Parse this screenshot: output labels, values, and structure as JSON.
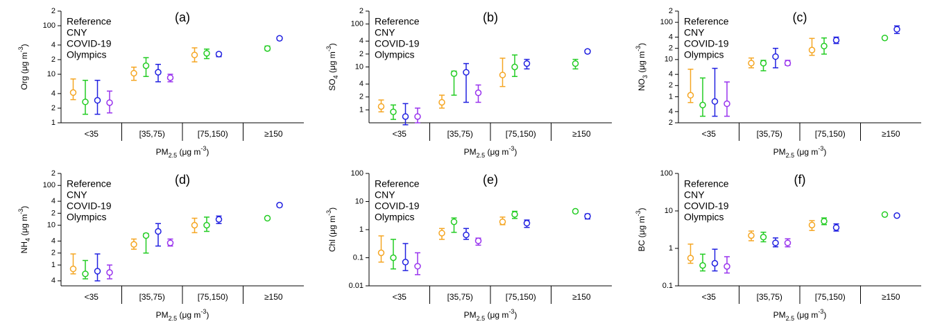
{
  "chart_data": [
    {
      "type": "errorbar",
      "title": "(a)",
      "log_y": true,
      "legend": "upper left",
      "ylabel": [
        {
          "text": "Org (μg m"
        },
        {
          "text": "-3",
          "sup": true
        },
        {
          "text": ")"
        }
      ],
      "xlabel": [
        {
          "text": "PM"
        },
        {
          "text": "2.5",
          "sub": true
        },
        {
          "text": " (μg m"
        },
        {
          "text": "-3",
          "sup": true
        },
        {
          "text": ")"
        }
      ],
      "categories": [
        "<35",
        "[35,75)",
        "[75,150)",
        "≥150"
      ],
      "ylim": [
        1,
        200
      ],
      "yticks": [
        1,
        2,
        4,
        10,
        {
          "value": 20,
          "label": "2"
        },
        {
          "value": 40,
          "label": "4"
        },
        100,
        {
          "value": 200,
          "label": "2"
        }
      ],
      "series": [
        {
          "name": "Reference",
          "color": "#f5a623",
          "values": [
            4.2,
            10.5,
            25,
            null
          ],
          "lower": [
            3,
            7.5,
            18,
            null
          ],
          "upper": [
            8,
            14,
            35,
            null
          ]
        },
        {
          "name": "CNY",
          "color": "#22cc22",
          "values": [
            2.7,
            15,
            27,
            34
          ],
          "lower": [
            1.5,
            9,
            21,
            31
          ],
          "upper": [
            7.5,
            22,
            33,
            38
          ]
        },
        {
          "name": "COVID-19",
          "color": "#2020e0",
          "values": [
            2.9,
            11,
            26,
            55
          ],
          "lower": [
            1.5,
            7,
            23,
            51
          ],
          "upper": [
            7.5,
            16,
            28,
            59
          ]
        },
        {
          "name": "Olympics",
          "color": "#9933ee",
          "values": [
            2.6,
            8.5,
            null,
            null
          ],
          "lower": [
            1.6,
            7,
            null,
            null
          ],
          "upper": [
            4.5,
            10,
            null,
            null
          ]
        }
      ]
    },
    {
      "type": "errorbar",
      "title": "(b)",
      "log_y": true,
      "legend": "upper left",
      "ylabel": [
        {
          "text": "SO"
        },
        {
          "text": "4",
          "sub": true
        },
        {
          "text": " (μg m"
        },
        {
          "text": "-3",
          "sup": true
        },
        {
          "text": ")"
        }
      ],
      "xlabel": [
        {
          "text": "PM"
        },
        {
          "text": "2.5",
          "sub": true
        },
        {
          "text": " (μg m"
        },
        {
          "text": "-3",
          "sup": true
        },
        {
          "text": ")"
        }
      ],
      "categories": [
        "<35",
        "[35,75)",
        "[75,150)",
        "≥150"
      ],
      "ylim": [
        0.5,
        200
      ],
      "yticks": [
        1,
        2,
        4,
        10,
        {
          "value": 20,
          "label": "2"
        },
        {
          "value": 40,
          "label": "4"
        },
        100,
        {
          "value": 200,
          "label": "2"
        }
      ],
      "series": [
        {
          "name": "Reference",
          "color": "#f5a623",
          "values": [
            1.2,
            1.5,
            6.5,
            null
          ],
          "lower": [
            0.9,
            1.1,
            3.5,
            null
          ],
          "upper": [
            1.7,
            2.2,
            16,
            null
          ]
        },
        {
          "name": "CNY",
          "color": "#22cc22",
          "values": [
            0.9,
            7,
            10,
            12
          ],
          "lower": [
            0.6,
            2.2,
            6,
            9
          ],
          "upper": [
            1.3,
            8,
            19,
            15
          ]
        },
        {
          "name": "COVID-19",
          "color": "#2020e0",
          "values": [
            0.7,
            7.5,
            12,
            23
          ],
          "lower": [
            0.45,
            1.5,
            9,
            21
          ],
          "upper": [
            1.4,
            12,
            15,
            25
          ]
        },
        {
          "name": "Olympics",
          "color": "#9933ee",
          "values": [
            0.7,
            2.5,
            null,
            null
          ],
          "lower": [
            0.5,
            1.5,
            null,
            null
          ],
          "upper": [
            1.1,
            3.8,
            null,
            null
          ]
        }
      ]
    },
    {
      "type": "errorbar",
      "title": "(c)",
      "log_y": true,
      "legend": "upper left",
      "ylabel": [
        {
          "text": "NO"
        },
        {
          "text": "3",
          "sub": true
        },
        {
          "text": " (μg m"
        },
        {
          "text": "-3",
          "sup": true
        },
        {
          "text": ")"
        }
      ],
      "xlabel": [
        {
          "text": "PM"
        },
        {
          "text": "2.5",
          "sub": true
        },
        {
          "text": " (μg m"
        },
        {
          "text": "-3",
          "sup": true
        },
        {
          "text": ")"
        }
      ],
      "categories": [
        "<35",
        "[35,75)",
        "[75,150)",
        "≥150"
      ],
      "ylim": [
        0.2,
        200
      ],
      "yticks": [
        {
          "value": 0.2,
          "label": "2"
        },
        {
          "value": 0.4,
          "label": "4"
        },
        1,
        2,
        4,
        10,
        {
          "value": 20,
          "label": "2"
        },
        {
          "value": 40,
          "label": "4"
        },
        100,
        {
          "value": 200,
          "label": "2"
        }
      ],
      "series": [
        {
          "name": "Reference",
          "color": "#f5a623",
          "values": [
            1.1,
            8,
            18,
            null
          ],
          "lower": [
            0.7,
            6,
            13,
            null
          ],
          "upper": [
            5.5,
            11,
            37,
            null
          ]
        },
        {
          "name": "CNY",
          "color": "#22cc22",
          "values": [
            0.6,
            8,
            23,
            38
          ],
          "lower": [
            0.3,
            5,
            14,
            36
          ],
          "upper": [
            3.2,
            9.5,
            38,
            41
          ]
        },
        {
          "name": "COVID-19",
          "color": "#2020e0",
          "values": [
            0.75,
            12,
            33,
            65
          ],
          "lower": [
            0.3,
            6,
            27,
            50
          ],
          "upper": [
            5.8,
            20,
            40,
            80
          ]
        },
        {
          "name": "Olympics",
          "color": "#9933ee",
          "values": [
            0.65,
            8,
            null,
            null
          ],
          "lower": [
            0.3,
            7,
            null,
            null
          ],
          "upper": [
            2.5,
            9.5,
            null,
            null
          ]
        }
      ]
    },
    {
      "type": "errorbar",
      "title": "(d)",
      "log_y": true,
      "legend": "upper left",
      "ylabel": [
        {
          "text": "NH"
        },
        {
          "text": "4",
          "sub": true
        },
        {
          "text": " (μg m"
        },
        {
          "text": "-3",
          "sup": true
        },
        {
          "text": ")"
        }
      ],
      "xlabel": [
        {
          "text": "PM"
        },
        {
          "text": "2.5",
          "sub": true
        },
        {
          "text": " (μg m"
        },
        {
          "text": "-3",
          "sup": true
        },
        {
          "text": ")"
        }
      ],
      "categories": [
        "<35",
        "[35,75)",
        "[75,150)",
        "≥150"
      ],
      "ylim": [
        0.3,
        200
      ],
      "yticks": [
        {
          "value": 0.4,
          "label": "4"
        },
        1,
        2,
        4,
        10,
        {
          "value": 20,
          "label": "2"
        },
        {
          "value": 40,
          "label": "4"
        },
        100,
        {
          "value": 200,
          "label": "2"
        }
      ],
      "series": [
        {
          "name": "Reference",
          "color": "#f5a623",
          "values": [
            0.8,
            3.3,
            10,
            null
          ],
          "lower": [
            0.6,
            2.5,
            6.5,
            null
          ],
          "upper": [
            1.9,
            4.5,
            15,
            null
          ]
        },
        {
          "name": "CNY",
          "color": "#22cc22",
          "values": [
            0.6,
            5.5,
            10,
            15
          ],
          "lower": [
            0.45,
            2,
            7,
            14
          ],
          "upper": [
            1.3,
            6.2,
            16,
            16
          ]
        },
        {
          "name": "COVID-19",
          "color": "#2020e0",
          "values": [
            0.7,
            7,
            14,
            32
          ],
          "lower": [
            0.4,
            3,
            11,
            29
          ],
          "upper": [
            1.9,
            11,
            17,
            35
          ]
        },
        {
          "name": "Olympics",
          "color": "#9933ee",
          "values": [
            0.65,
            3.6,
            null,
            null
          ],
          "lower": [
            0.45,
            3,
            null,
            null
          ],
          "upper": [
            1.0,
            4.5,
            null,
            null
          ]
        }
      ]
    },
    {
      "type": "errorbar",
      "title": "(e)",
      "log_y": true,
      "legend": "upper left",
      "ylabel": [
        {
          "text": "Chl (μg m"
        },
        {
          "text": "-3",
          "sup": true
        },
        {
          "text": ")"
        }
      ],
      "xlabel": [
        {
          "text": "PM"
        },
        {
          "text": "2.5",
          "sub": true
        },
        {
          "text": " (μg m"
        },
        {
          "text": "-3",
          "sup": true
        },
        {
          "text": ")"
        }
      ],
      "categories": [
        "<35",
        "[35,75)",
        "[75,150)",
        "≥150"
      ],
      "ylim": [
        0.01,
        100
      ],
      "yticks": [
        0.01,
        0.1,
        1,
        10,
        100
      ],
      "series": [
        {
          "name": "Reference",
          "color": "#f5a623",
          "values": [
            0.15,
            0.75,
            1.9,
            null
          ],
          "lower": [
            0.07,
            0.45,
            1.5,
            null
          ],
          "upper": [
            0.6,
            1.1,
            2.8,
            null
          ]
        },
        {
          "name": "CNY",
          "color": "#22cc22",
          "values": [
            0.1,
            1.9,
            3.5,
            4.5
          ],
          "lower": [
            0.04,
            0.8,
            2.5,
            4
          ],
          "upper": [
            0.45,
            2.6,
            4.5,
            5
          ]
        },
        {
          "name": "COVID-19",
          "color": "#2020e0",
          "values": [
            0.07,
            0.65,
            1.7,
            3
          ],
          "lower": [
            0.035,
            0.45,
            1.2,
            2.4
          ],
          "upper": [
            0.32,
            1.1,
            2.2,
            3.6
          ]
        },
        {
          "name": "Olympics",
          "color": "#9933ee",
          "values": [
            0.05,
            0.4,
            null,
            null
          ],
          "lower": [
            0.025,
            0.28,
            null,
            null
          ],
          "upper": [
            0.15,
            0.5,
            null,
            null
          ]
        }
      ]
    },
    {
      "type": "errorbar",
      "title": "(f)",
      "log_y": true,
      "legend": "upper left",
      "ylabel": [
        {
          "text": "BC (μg m"
        },
        {
          "text": "-3",
          "sup": true
        },
        {
          "text": ")"
        }
      ],
      "xlabel": [
        {
          "text": "PM"
        },
        {
          "text": "2.5",
          "sub": true
        },
        {
          "text": " (μg m"
        },
        {
          "text": "-3",
          "sup": true
        },
        {
          "text": ")"
        }
      ],
      "categories": [
        "<35",
        "[35,75)",
        "[75,150)",
        "≥150"
      ],
      "ylim": [
        0.1,
        100
      ],
      "yticks": [
        0.1,
        1,
        10,
        100
      ],
      "series": [
        {
          "name": "Reference",
          "color": "#f5a623",
          "values": [
            0.55,
            2.2,
            4.2,
            null
          ],
          "lower": [
            0.4,
            1.6,
            3,
            null
          ],
          "upper": [
            1.3,
            2.9,
            5.5,
            null
          ]
        },
        {
          "name": "CNY",
          "color": "#22cc22",
          "values": [
            0.35,
            2,
            5.3,
            8
          ],
          "lower": [
            0.25,
            1.5,
            4.3,
            7.5
          ],
          "upper": [
            0.7,
            2.7,
            6.5,
            8.5
          ]
        },
        {
          "name": "COVID-19",
          "color": "#2020e0",
          "values": [
            0.4,
            1.4,
            3.6,
            7.5
          ],
          "lower": [
            0.25,
            1.1,
            2.9,
            7
          ],
          "upper": [
            0.95,
            1.9,
            4.5,
            8
          ]
        },
        {
          "name": "Olympics",
          "color": "#9933ee",
          "values": [
            0.33,
            1.4,
            null,
            null
          ],
          "lower": [
            0.22,
            1.1,
            null,
            null
          ],
          "upper": [
            0.6,
            1.8,
            null,
            null
          ]
        }
      ]
    }
  ]
}
